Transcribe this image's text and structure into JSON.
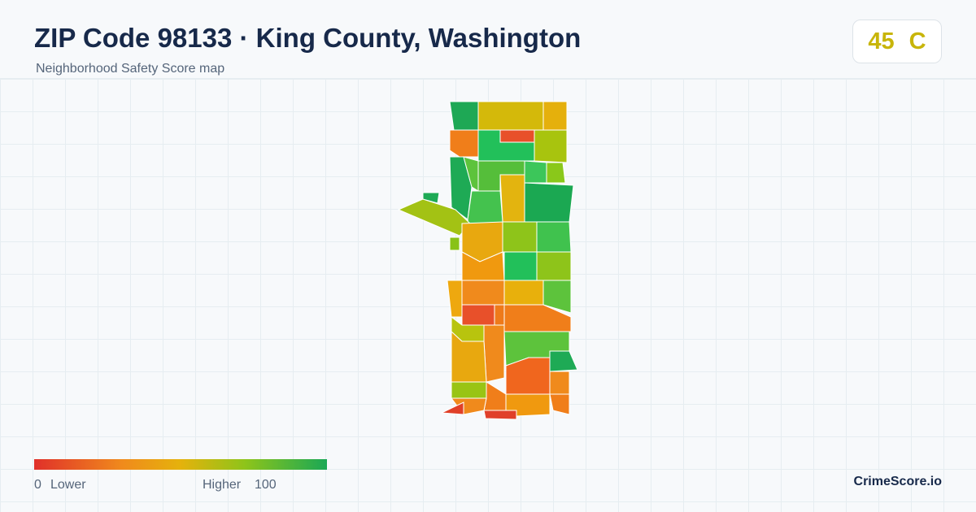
{
  "header": {
    "title": "ZIP Code 98133 · King County, Washington",
    "subtitle": "Neighborhood Safety Score map"
  },
  "score": {
    "value": 45,
    "grade": "C"
  },
  "legend": {
    "min": 0,
    "min_label": "Lower",
    "max_label": "Higher",
    "max": 100
  },
  "brand": "CrimeScore.io"
}
